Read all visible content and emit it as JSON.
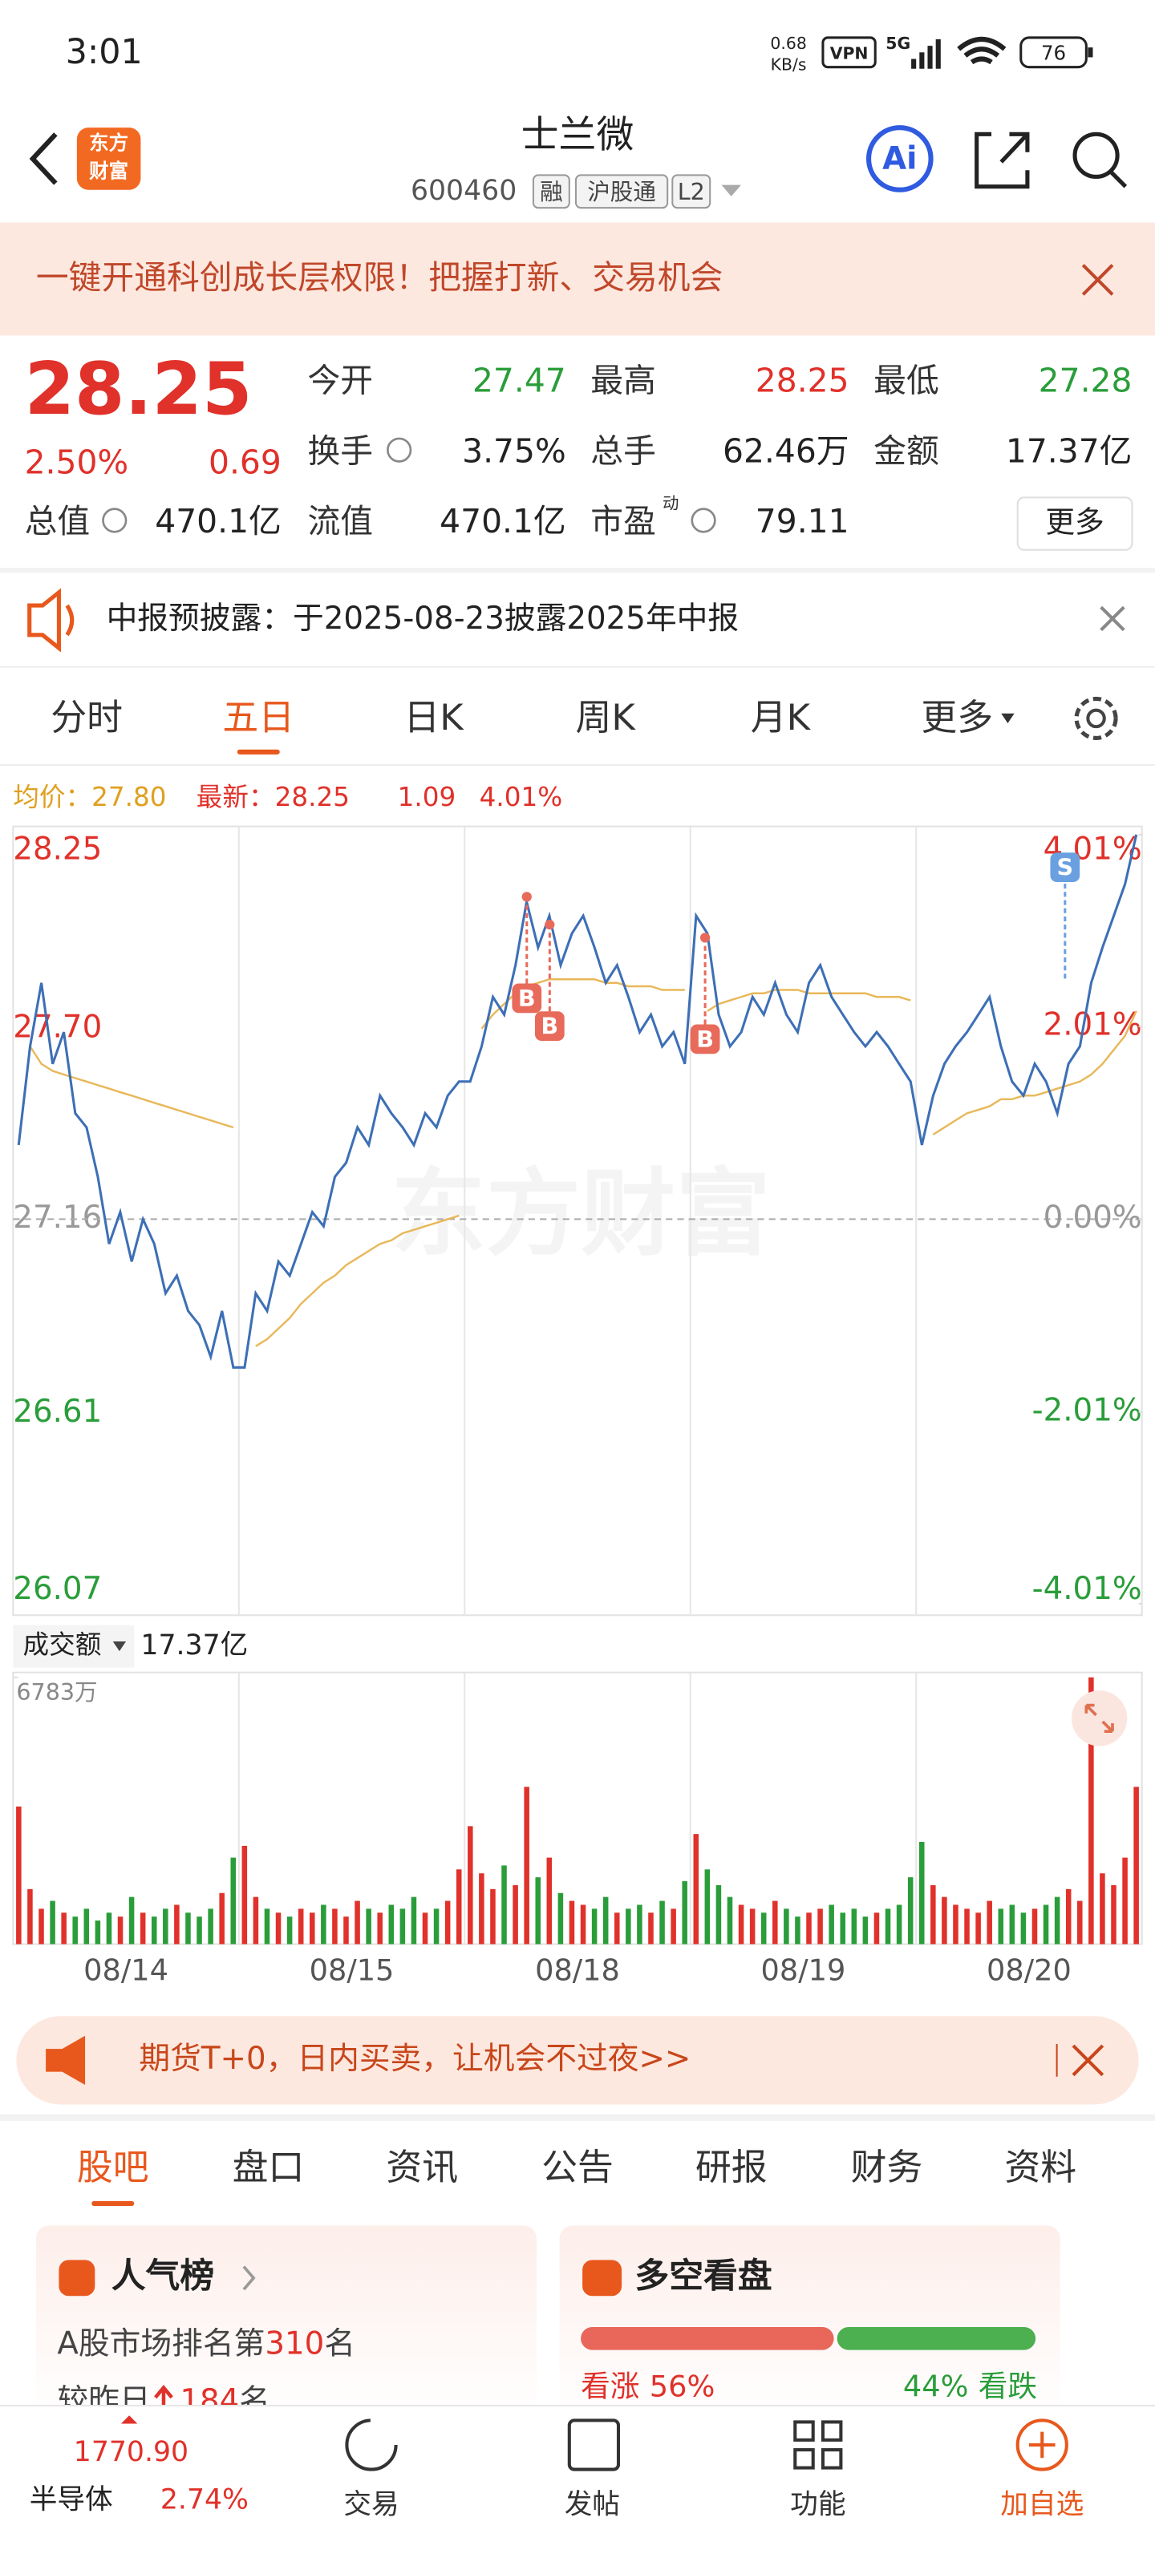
{
  "status_bar": {
    "time": "3:01",
    "speed": "0.68",
    "speed_unit": "KB/s",
    "vpn": "VPN",
    "network": "5G",
    "battery": "76"
  },
  "header": {
    "logo_line1": "东方",
    "logo_line2": "财富",
    "title": "士兰微",
    "code": "600460",
    "tags": [
      "融",
      "沪股通",
      "L2"
    ],
    "ai": "Ai"
  },
  "banner": {
    "text": "一键开通科创成长层权限！把握打新、交易机会"
  },
  "quote": {
    "price": "28.25",
    "change_pct": "2.50%",
    "change": "0.69",
    "more": "更多",
    "fields": [
      {
        "label": "今开",
        "value": "27.47",
        "color": "#2a9d3a"
      },
      {
        "label": "最高",
        "value": "28.25",
        "color": "#e0312a"
      },
      {
        "label": "最低",
        "value": "27.28",
        "color": "#2a9d3a"
      },
      {
        "label": "换手",
        "value": "3.75%",
        "color": "#222222"
      },
      {
        "label": "总手",
        "value": "62.46万",
        "color": "#222222"
      },
      {
        "label": "金额",
        "value": "17.37亿",
        "color": "#222222"
      },
      {
        "label": "总值",
        "value": "470.1亿",
        "color": "#222222"
      },
      {
        "label": "流值",
        "value": "470.1亿",
        "color": "#222222"
      },
      {
        "label": "市盈",
        "sup": "动",
        "value": "79.11",
        "color": "#222222"
      }
    ]
  },
  "notice": {
    "text": "中报预披露：于2025-08-23披露2025年中报"
  },
  "tabs": {
    "items": [
      "分时",
      "五日",
      "日K",
      "周K",
      "月K",
      "更多"
    ],
    "active": 1
  },
  "chart_info": {
    "avg_label": "均价：",
    "avg": "27.80",
    "latest_label": "最新：",
    "latest": "28.25",
    "change": "1.09",
    "change_pct": "4.01%"
  },
  "chart_data": [
    {
      "type": "line",
      "watermark": "东方财富",
      "grid": true,
      "ylim": [
        26.07,
        28.25
      ],
      "yticks": [
        28.25,
        {
          "value": 27.7,
          "label": "27.70"
        },
        27.16,
        26.61,
        26.07
      ],
      "y2lim": [
        -4.01,
        4.01
      ],
      "y2ticks": [
        {
          "value": 4.01,
          "label": "4.01%"
        },
        {
          "value": 2.01,
          "label": "2.01%"
        },
        {
          "value": 0,
          "label": "0.00%"
        },
        {
          "value": -2.01,
          "label": "-2.01%"
        },
        {
          "value": -4.01,
          "label": "-4.01%"
        }
      ],
      "days": [
        "08/14",
        "08/15",
        "08/18",
        "08/19",
        "08/20"
      ],
      "series": [
        {
          "color": "#3d6fb6",
          "values": [
            27.37,
            27.65,
            27.83,
            27.6,
            27.69,
            27.46,
            27.42,
            27.28,
            27.09,
            27.18,
            27.04,
            27.16,
            27.09,
            26.95,
            27.0,
            26.9,
            26.86,
            26.77,
            26.9,
            26.74,
            26.74,
            26.95,
            26.9,
            27.04,
            27.0,
            27.09,
            27.18,
            27.14,
            27.28,
            27.32,
            27.42,
            27.37,
            27.51,
            27.46,
            27.42,
            27.37,
            27.46,
            27.42,
            27.51,
            27.55,
            27.55,
            27.65,
            27.79,
            27.74,
            27.88,
            28.06,
            27.93,
            28.02,
            27.88,
            27.97,
            28.02,
            27.93,
            27.83,
            27.88,
            27.79,
            27.69,
            27.74,
            27.65,
            27.69,
            27.6,
            28.02,
            27.97,
            27.74,
            27.65,
            27.69,
            27.79,
            27.74,
            27.83,
            27.74,
            27.69,
            27.83,
            27.88,
            27.79,
            27.74,
            27.69,
            27.65,
            27.69,
            27.65,
            27.6,
            27.55,
            27.37,
            27.51,
            27.6,
            27.65,
            27.69,
            27.74,
            27.79,
            27.65,
            27.55,
            27.51,
            27.6,
            27.55,
            27.46,
            27.6,
            27.65,
            27.83,
            27.93,
            28.02,
            28.11,
            28.25
          ]
        },
        {
          "color": "#e8b85a",
          "values": [
            null,
            27.65,
            27.6,
            27.58,
            27.57,
            27.56,
            27.55,
            27.54,
            27.53,
            27.52,
            27.51,
            27.5,
            27.49,
            27.48,
            27.47,
            27.46,
            27.45,
            27.44,
            27.43,
            27.42,
            null,
            26.8,
            26.82,
            26.85,
            26.88,
            26.92,
            26.95,
            26.98,
            27.0,
            27.03,
            27.05,
            27.07,
            27.09,
            27.1,
            27.12,
            27.13,
            27.14,
            27.15,
            27.16,
            27.17,
            null,
            27.7,
            27.74,
            27.77,
            27.8,
            27.82,
            27.83,
            27.84,
            27.84,
            27.84,
            27.84,
            27.84,
            27.83,
            27.83,
            27.82,
            27.82,
            27.82,
            27.81,
            27.81,
            27.81,
            null,
            27.75,
            27.77,
            27.78,
            27.79,
            27.8,
            27.8,
            27.81,
            27.81,
            27.81,
            27.8,
            27.8,
            27.8,
            27.8,
            27.8,
            27.8,
            27.79,
            27.79,
            27.79,
            27.78,
            null,
            27.4,
            27.42,
            27.44,
            27.46,
            27.47,
            27.48,
            27.5,
            27.5,
            27.51,
            27.51,
            27.52,
            27.53,
            27.54,
            27.55,
            27.57,
            27.6,
            27.64,
            27.68,
            27.75
          ]
        }
      ],
      "trade_marks": [
        "B",
        "B",
        "B",
        "S"
      ]
    },
    {
      "type": "bar",
      "label": "成交额",
      "total": "17.37亿",
      "ylim": [
        0,
        6783
      ],
      "yticks": [
        {
          "value": 6783,
          "label": "6783万"
        }
      ],
      "up_color": "#e0312a",
      "down_color": "#2a9d3a",
      "values": [
        3500,
        1400,
        900,
        1100,
        800,
        700,
        900,
        600,
        800,
        700,
        1200,
        800,
        700,
        900,
        1000,
        800,
        700,
        900,
        1300,
        2200,
        2500,
        1200,
        900,
        800,
        700,
        900,
        800,
        1000,
        900,
        700,
        1100,
        900,
        800,
        1000,
        900,
        1200,
        800,
        900,
        1100,
        1900,
        3000,
        1800,
        1400,
        2000,
        1500,
        4000,
        1700,
        2200,
        1300,
        1100,
        1000,
        900,
        1200,
        800,
        900,
        1000,
        800,
        1100,
        900,
        1600,
        2800,
        1900,
        1500,
        1200,
        1000,
        900,
        800,
        1100,
        900,
        700,
        800,
        900,
        1000,
        800,
        900,
        700,
        800,
        900,
        1000,
        1700,
        2600,
        1500,
        1200,
        1000,
        900,
        800,
        1100,
        900,
        1000,
        800,
        900,
        1000,
        1200,
        1400,
        1100,
        6783,
        1800,
        1500,
        2200,
        4000
      ]
    }
  ],
  "promo": {
    "text": "期货T+0，日内买卖，让机会不过夜>>"
  },
  "sections": {
    "items": [
      "股吧",
      "盘口",
      "资讯",
      "公告",
      "研报",
      "财务",
      "资料"
    ],
    "active": 0
  },
  "popularity": {
    "title": "人气榜",
    "rank_prefix": "A股市场排名第",
    "rank": "310",
    "rank_suffix": "名",
    "change_prefix": "较昨日",
    "change": "184",
    "change_suffix": "名"
  },
  "sentiment": {
    "title": "多空看盘",
    "up_label": "看涨",
    "up": 56,
    "up_text": "56%",
    "down_label": "看跌",
    "down": 44,
    "down_text": "44%"
  },
  "bottom_nav": {
    "index_value": "1770.90",
    "index_name": "半导体",
    "index_change": "2.74%",
    "items": [
      "交易",
      "发帖",
      "功能",
      "加自选"
    ]
  }
}
